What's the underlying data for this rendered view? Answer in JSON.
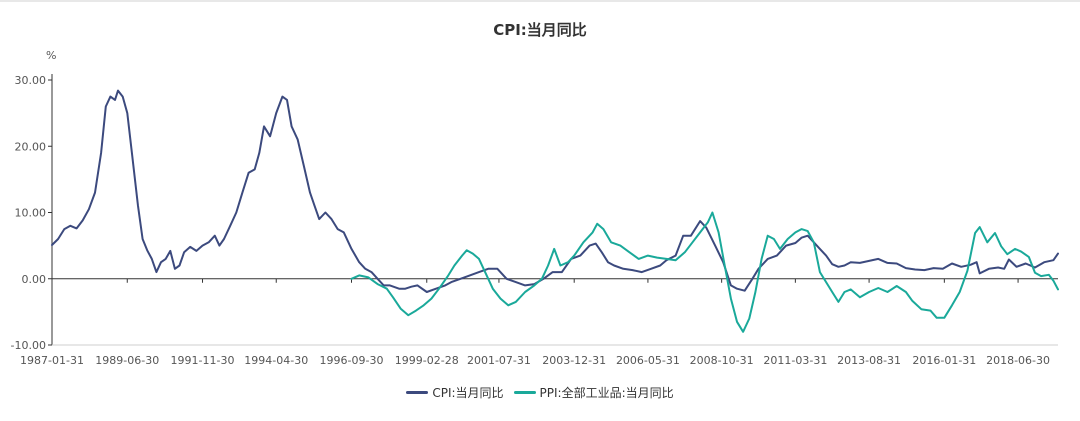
{
  "chart_data": {
    "type": "line",
    "title": "CPI:当月同比",
    "ylabel": "%",
    "ylim": [
      -10,
      30
    ],
    "yticks": [
      "30.00",
      "20.00",
      "10.00",
      "0.00",
      "-10.00"
    ],
    "ytick_values": [
      30,
      20,
      10,
      0,
      -10
    ],
    "xrange": [
      1987.0,
      2019.75
    ],
    "xticks": [
      "1987-01-31",
      "1989-06-30",
      "1991-11-30",
      "1994-04-30",
      "1996-09-30",
      "1999-02-28",
      "2001-07-31",
      "2003-12-31",
      "2006-05-31",
      "2008-10-31",
      "2011-03-31",
      "2013-08-31",
      "2016-01-31",
      "2018-06-30"
    ],
    "xtick_values": [
      1987.0,
      1989.45,
      1991.9,
      1994.3,
      1996.75,
      1999.2,
      2001.55,
      2004.0,
      2006.4,
      2008.8,
      2011.2,
      2013.6,
      2016.05,
      2018.45
    ],
    "legend_position": "bottom-center",
    "series": [
      {
        "name": "CPI:当月同比",
        "color": "#3c4a7e",
        "points": [
          [
            1987.0,
            5.1
          ],
          [
            1987.2,
            6.0
          ],
          [
            1987.4,
            7.5
          ],
          [
            1987.6,
            8.0
          ],
          [
            1987.8,
            7.6
          ],
          [
            1988.0,
            8.8
          ],
          [
            1988.2,
            10.5
          ],
          [
            1988.4,
            13.0
          ],
          [
            1988.6,
            19.0
          ],
          [
            1988.75,
            26.0
          ],
          [
            1988.9,
            27.5
          ],
          [
            1989.05,
            27.0
          ],
          [
            1989.15,
            28.4
          ],
          [
            1989.3,
            27.5
          ],
          [
            1989.45,
            25.0
          ],
          [
            1989.6,
            19.0
          ],
          [
            1989.8,
            11.0
          ],
          [
            1989.95,
            6.0
          ],
          [
            1990.1,
            4.3
          ],
          [
            1990.25,
            3.0
          ],
          [
            1990.4,
            1.0
          ],
          [
            1990.55,
            2.5
          ],
          [
            1990.7,
            3.0
          ],
          [
            1990.85,
            4.2
          ],
          [
            1991.0,
            1.5
          ],
          [
            1991.15,
            2.0
          ],
          [
            1991.3,
            4.0
          ],
          [
            1991.5,
            4.8
          ],
          [
            1991.7,
            4.2
          ],
          [
            1991.9,
            5.0
          ],
          [
            1992.1,
            5.5
          ],
          [
            1992.3,
            6.5
          ],
          [
            1992.45,
            5.0
          ],
          [
            1992.6,
            6.0
          ],
          [
            1992.8,
            8.0
          ],
          [
            1993.0,
            10.0
          ],
          [
            1993.2,
            13.0
          ],
          [
            1993.4,
            16.0
          ],
          [
            1993.6,
            16.5
          ],
          [
            1993.75,
            19.0
          ],
          [
            1993.9,
            23.0
          ],
          [
            1994.1,
            21.5
          ],
          [
            1994.3,
            25.0
          ],
          [
            1994.5,
            27.5
          ],
          [
            1994.65,
            27.0
          ],
          [
            1994.8,
            23.0
          ],
          [
            1995.0,
            21.0
          ],
          [
            1995.2,
            17.0
          ],
          [
            1995.4,
            13.0
          ],
          [
            1995.55,
            11.0
          ],
          [
            1995.7,
            9.0
          ],
          [
            1995.9,
            10.0
          ],
          [
            1996.1,
            9.0
          ],
          [
            1996.3,
            7.5
          ],
          [
            1996.5,
            7.0
          ],
          [
            1996.75,
            4.5
          ],
          [
            1997.0,
            2.5
          ],
          [
            1997.2,
            1.5
          ],
          [
            1997.4,
            1.0
          ],
          [
            1997.6,
            0.0
          ],
          [
            1997.8,
            -1.0
          ],
          [
            1998.0,
            -1.0
          ],
          [
            1998.3,
            -1.5
          ],
          [
            1998.5,
            -1.5
          ],
          [
            1998.7,
            -1.2
          ],
          [
            1998.9,
            -1.0
          ],
          [
            1999.2,
            -2.0
          ],
          [
            1999.5,
            -1.5
          ],
          [
            1999.8,
            -1.0
          ],
          [
            2000.0,
            -0.5
          ],
          [
            2000.3,
            0.0
          ],
          [
            2000.6,
            0.5
          ],
          [
            2000.9,
            1.0
          ],
          [
            2001.2,
            1.5
          ],
          [
            2001.5,
            1.5
          ],
          [
            2001.8,
            0.0
          ],
          [
            2002.1,
            -0.5
          ],
          [
            2002.4,
            -1.0
          ],
          [
            2002.7,
            -0.8
          ],
          [
            2003.0,
            0.0
          ],
          [
            2003.3,
            1.0
          ],
          [
            2003.6,
            1.0
          ],
          [
            2003.9,
            3.0
          ],
          [
            2004.2,
            3.5
          ],
          [
            2004.5,
            5.0
          ],
          [
            2004.7,
            5.3
          ],
          [
            2004.9,
            4.0
          ],
          [
            2005.1,
            2.5
          ],
          [
            2005.3,
            2.0
          ],
          [
            2005.6,
            1.5
          ],
          [
            2005.9,
            1.3
          ],
          [
            2006.2,
            1.0
          ],
          [
            2006.5,
            1.5
          ],
          [
            2006.8,
            2.0
          ],
          [
            2007.0,
            2.8
          ],
          [
            2007.3,
            3.5
          ],
          [
            2007.55,
            6.5
          ],
          [
            2007.8,
            6.5
          ],
          [
            2008.1,
            8.7
          ],
          [
            2008.3,
            7.7
          ],
          [
            2008.6,
            4.9
          ],
          [
            2008.85,
            2.5
          ],
          [
            2009.1,
            -1.0
          ],
          [
            2009.3,
            -1.5
          ],
          [
            2009.55,
            -1.8
          ],
          [
            2009.8,
            0.0
          ],
          [
            2010.0,
            1.5
          ],
          [
            2010.3,
            3.0
          ],
          [
            2010.6,
            3.5
          ],
          [
            2010.9,
            5.0
          ],
          [
            2011.2,
            5.4
          ],
          [
            2011.4,
            6.2
          ],
          [
            2011.6,
            6.5
          ],
          [
            2011.8,
            5.5
          ],
          [
            2012.0,
            4.5
          ],
          [
            2012.2,
            3.5
          ],
          [
            2012.4,
            2.2
          ],
          [
            2012.6,
            1.8
          ],
          [
            2012.8,
            2.0
          ],
          [
            2013.0,
            2.5
          ],
          [
            2013.3,
            2.4
          ],
          [
            2013.6,
            2.7
          ],
          [
            2013.9,
            3.0
          ],
          [
            2014.2,
            2.4
          ],
          [
            2014.5,
            2.3
          ],
          [
            2014.8,
            1.6
          ],
          [
            2015.1,
            1.4
          ],
          [
            2015.4,
            1.3
          ],
          [
            2015.7,
            1.6
          ],
          [
            2016.0,
            1.5
          ],
          [
            2016.3,
            2.3
          ],
          [
            2016.6,
            1.8
          ],
          [
            2016.9,
            2.1
          ],
          [
            2017.1,
            2.5
          ],
          [
            2017.2,
            0.8
          ],
          [
            2017.5,
            1.5
          ],
          [
            2017.8,
            1.7
          ],
          [
            2018.0,
            1.5
          ],
          [
            2018.15,
            2.9
          ],
          [
            2018.4,
            1.8
          ],
          [
            2018.7,
            2.3
          ],
          [
            2019.0,
            1.7
          ],
          [
            2019.3,
            2.5
          ],
          [
            2019.6,
            2.8
          ],
          [
            2019.75,
            3.8
          ]
        ]
      },
      {
        "name": "PPI:全部工业品:当月同比",
        "color": "#1aa99a",
        "points": [
          [
            1996.75,
            0.0
          ],
          [
            1997.0,
            0.5
          ],
          [
            1997.3,
            0.2
          ],
          [
            1997.6,
            -0.8
          ],
          [
            1997.9,
            -1.5
          ],
          [
            1998.1,
            -2.8
          ],
          [
            1998.35,
            -4.5
          ],
          [
            1998.6,
            -5.5
          ],
          [
            1998.85,
            -4.8
          ],
          [
            1999.1,
            -4.0
          ],
          [
            1999.35,
            -3.0
          ],
          [
            1999.6,
            -1.5
          ],
          [
            1999.9,
            0.5
          ],
          [
            2000.1,
            2.0
          ],
          [
            2000.35,
            3.5
          ],
          [
            2000.5,
            4.3
          ],
          [
            2000.7,
            3.8
          ],
          [
            2000.9,
            3.0
          ],
          [
            2001.1,
            1.0
          ],
          [
            2001.35,
            -1.5
          ],
          [
            2001.6,
            -3.0
          ],
          [
            2001.85,
            -4.0
          ],
          [
            2002.1,
            -3.5
          ],
          [
            2002.4,
            -2.0
          ],
          [
            2002.7,
            -1.0
          ],
          [
            2002.95,
            0.0
          ],
          [
            2003.15,
            2.0
          ],
          [
            2003.35,
            4.5
          ],
          [
            2003.55,
            2.0
          ],
          [
            2003.8,
            2.5
          ],
          [
            2004.0,
            3.5
          ],
          [
            2004.3,
            5.5
          ],
          [
            2004.6,
            7.0
          ],
          [
            2004.75,
            8.3
          ],
          [
            2004.95,
            7.5
          ],
          [
            2005.2,
            5.5
          ],
          [
            2005.5,
            5.0
          ],
          [
            2005.8,
            4.0
          ],
          [
            2006.1,
            3.0
          ],
          [
            2006.4,
            3.5
          ],
          [
            2006.7,
            3.2
          ],
          [
            2007.0,
            3.0
          ],
          [
            2007.3,
            2.8
          ],
          [
            2007.6,
            4.0
          ],
          [
            2007.85,
            5.5
          ],
          [
            2008.1,
            7.0
          ],
          [
            2008.35,
            8.5
          ],
          [
            2008.5,
            10.0
          ],
          [
            2008.7,
            7.0
          ],
          [
            2008.9,
            2.0
          ],
          [
            2009.1,
            -3.0
          ],
          [
            2009.3,
            -6.5
          ],
          [
            2009.5,
            -8.0
          ],
          [
            2009.7,
            -6.0
          ],
          [
            2009.9,
            -2.0
          ],
          [
            2010.1,
            3.0
          ],
          [
            2010.3,
            6.5
          ],
          [
            2010.5,
            6.0
          ],
          [
            2010.7,
            4.5
          ],
          [
            2010.95,
            6.0
          ],
          [
            2011.2,
            7.0
          ],
          [
            2011.4,
            7.5
          ],
          [
            2011.6,
            7.2
          ],
          [
            2011.8,
            5.5
          ],
          [
            2012.0,
            1.0
          ],
          [
            2012.2,
            -0.5
          ],
          [
            2012.4,
            -2.0
          ],
          [
            2012.6,
            -3.5
          ],
          [
            2012.8,
            -2.0
          ],
          [
            2013.0,
            -1.6
          ],
          [
            2013.3,
            -2.8
          ],
          [
            2013.6,
            -2.0
          ],
          [
            2013.9,
            -1.4
          ],
          [
            2014.2,
            -2.0
          ],
          [
            2014.5,
            -1.1
          ],
          [
            2014.8,
            -2.0
          ],
          [
            2015.0,
            -3.3
          ],
          [
            2015.3,
            -4.6
          ],
          [
            2015.6,
            -4.8
          ],
          [
            2015.8,
            -5.9
          ],
          [
            2016.05,
            -5.9
          ],
          [
            2016.3,
            -4.0
          ],
          [
            2016.55,
            -2.0
          ],
          [
            2016.8,
            1.2
          ],
          [
            2017.05,
            6.9
          ],
          [
            2017.2,
            7.8
          ],
          [
            2017.45,
            5.5
          ],
          [
            2017.7,
            6.9
          ],
          [
            2017.9,
            4.9
          ],
          [
            2018.1,
            3.7
          ],
          [
            2018.35,
            4.5
          ],
          [
            2018.55,
            4.1
          ],
          [
            2018.8,
            3.3
          ],
          [
            2019.0,
            0.9
          ],
          [
            2019.2,
            0.4
          ],
          [
            2019.45,
            0.6
          ],
          [
            2019.6,
            -0.3
          ],
          [
            2019.75,
            -1.6
          ]
        ]
      }
    ]
  }
}
